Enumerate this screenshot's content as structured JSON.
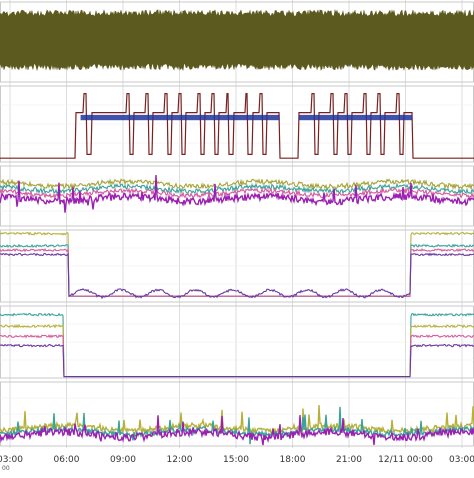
{
  "chart_data": {
    "type": "line",
    "layout": "stacked-panels",
    "grid": true,
    "background": "#ffffff",
    "x_axis": {
      "start_tick_index": 0,
      "labels": [
        "03:00",
        "06:00",
        "09:00",
        "12:00",
        "15:00",
        "18:00",
        "21:00",
        "12/11 00:00",
        "03:00"
      ],
      "cut_off_left_label": "00"
    },
    "panels": [
      {
        "name": "panel-1",
        "series": [
          {
            "color": "#5c5a1e",
            "kind": "band",
            "y_low": 0.15,
            "y_high": 0.9,
            "noise": 0.08
          }
        ]
      },
      {
        "name": "panel-2",
        "series": [
          {
            "color": "#7b1f1f",
            "kind": "step_pulses",
            "low": 0.05,
            "high": 0.65,
            "on_from": 0.16,
            "pulse_windows": [
              [
                0.16,
                0.59
              ],
              [
                0.63,
                0.87
              ]
            ],
            "pulse_times": [
              0.18,
              0.27,
              0.31,
              0.35,
              0.38,
              0.42,
              0.45,
              0.48,
              0.52,
              0.55,
              0.66,
              0.7,
              0.73,
              0.77,
              0.8,
              0.84
            ]
          },
          {
            "color": "#20359a",
            "kind": "flat_band",
            "low": 0.55,
            "high": 0.62,
            "windows": [
              [
                0.17,
                0.59
              ],
              [
                0.63,
                0.87
              ]
            ]
          }
        ]
      },
      {
        "name": "panel-3",
        "series": [
          {
            "color": "#a7a237",
            "kind": "noisy",
            "level": 0.7,
            "noise": 0.08
          },
          {
            "color": "#3aa39a",
            "kind": "noisy",
            "level": 0.62,
            "noise": 0.08
          },
          {
            "color": "#d75a9c",
            "kind": "noisy",
            "level": 0.55,
            "noise": 0.08
          },
          {
            "color": "#9b1fb2",
            "kind": "noisy_spiky",
            "level": 0.45,
            "noise": 0.12
          }
        ]
      },
      {
        "name": "panel-4",
        "series": [
          {
            "color": "#b6b03b",
            "kind": "regime",
            "high": 0.95,
            "low": 0.08,
            "drop": 0.145,
            "rise": 0.865
          },
          {
            "color": "#3aa39a",
            "kind": "regime",
            "high": 0.78,
            "low": 0.08,
            "drop": 0.145,
            "rise": 0.865
          },
          {
            "color": "#d75a9c",
            "kind": "regime",
            "high": 0.72,
            "low": 0.08,
            "drop": 0.145,
            "rise": 0.865
          },
          {
            "color": "#6a3aa0",
            "kind": "regime_wobble",
            "high": 0.66,
            "low": 0.12,
            "drop": 0.145,
            "rise": 0.865
          }
        ]
      },
      {
        "name": "panel-5",
        "series": [
          {
            "color": "#3aa39a",
            "kind": "regime",
            "high": 0.88,
            "low": 0.02,
            "drop": 0.135,
            "rise": 0.865
          },
          {
            "color": "#b6b03b",
            "kind": "regime",
            "high": 0.72,
            "low": 0.02,
            "drop": 0.135,
            "rise": 0.865
          },
          {
            "color": "#d75a9c",
            "kind": "regime",
            "high": 0.58,
            "low": 0.02,
            "drop": 0.135,
            "rise": 0.865
          },
          {
            "color": "#6a3aa0",
            "kind": "regime",
            "high": 0.45,
            "low": 0.02,
            "drop": 0.135,
            "rise": 0.865
          }
        ]
      },
      {
        "name": "panel-6",
        "series": [
          {
            "color": "#b6b03b",
            "kind": "noisy_spiky",
            "level": 0.28,
            "noise": 0.08
          },
          {
            "color": "#3aa39a",
            "kind": "noisy_spiky",
            "level": 0.22,
            "noise": 0.08
          },
          {
            "color": "#9b1fb2",
            "kind": "noisy_spiky",
            "level": 0.18,
            "noise": 0.12
          }
        ]
      }
    ]
  }
}
